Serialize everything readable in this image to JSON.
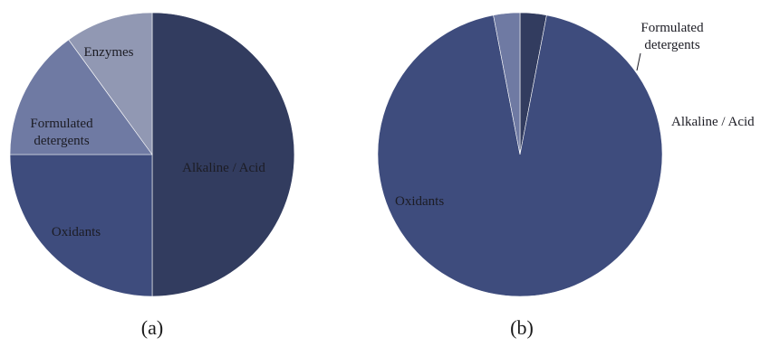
{
  "chart_data": [
    {
      "type": "pie",
      "panel_label": "(a)",
      "slices": [
        {
          "label": "Alkaline / Acid",
          "value": 50,
          "color": "#323c5f"
        },
        {
          "label": "Oxidants",
          "value": 25,
          "color": "#3e4c7d"
        },
        {
          "label": "Formulated detergents",
          "value": 15,
          "color": "#6f7aa3"
        },
        {
          "label": "Enzymes",
          "value": 10,
          "color": "#9198b3"
        }
      ]
    },
    {
      "type": "pie",
      "panel_label": "(b)",
      "slices": [
        {
          "label": "Alkaline / Acid",
          "value": 3,
          "color": "#323c5f"
        },
        {
          "label": "Oxidants",
          "value": 94,
          "color": "#3e4c7d"
        },
        {
          "label": "Formulated detergents",
          "value": 3,
          "color": "#6f7aa3"
        }
      ]
    }
  ]
}
